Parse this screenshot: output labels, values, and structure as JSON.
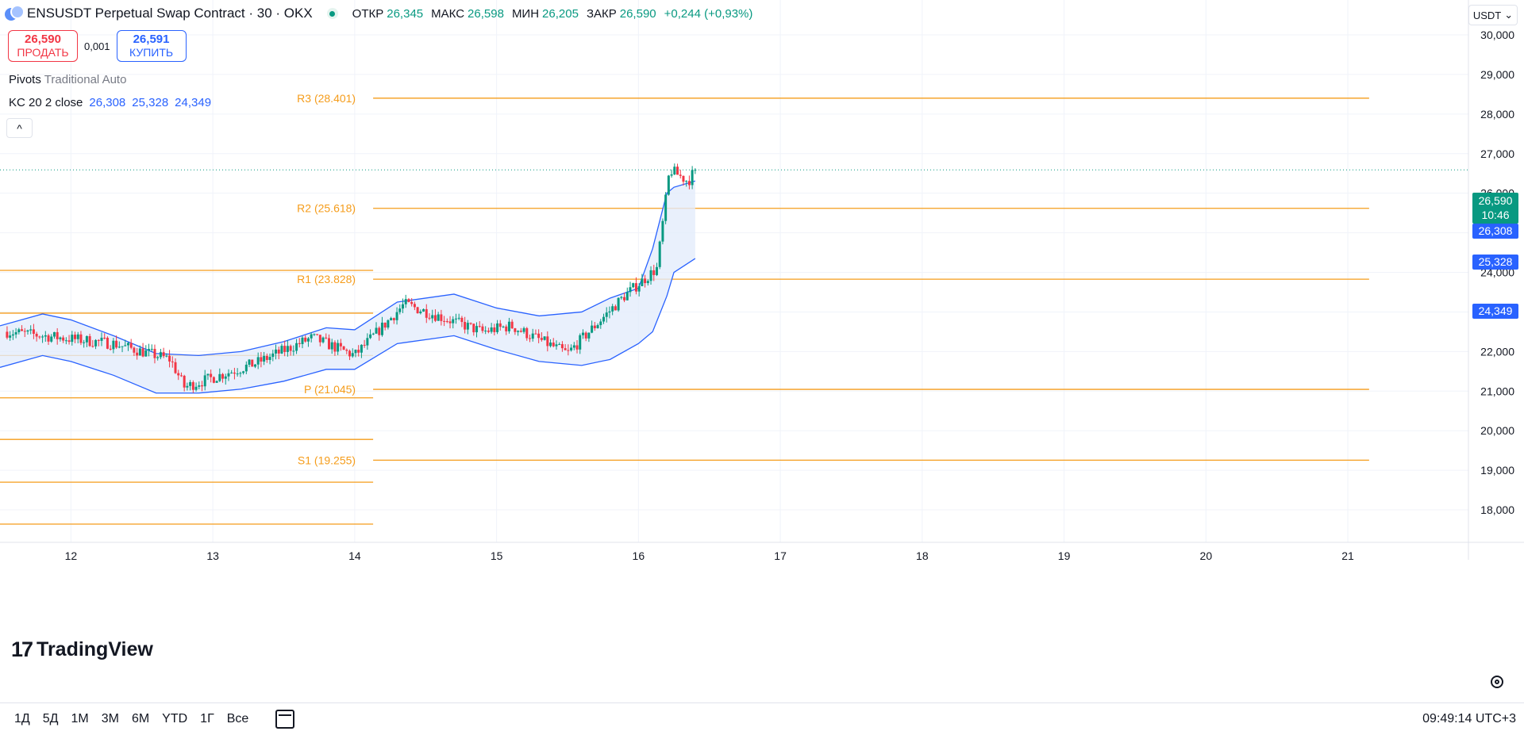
{
  "header": {
    "title": "ENSUSDT Perpetual Swap Contract · 30 · OKX",
    "ohlc": [
      {
        "k": "ОТКР",
        "v": "26,345"
      },
      {
        "k": "МАКС",
        "v": "26,598"
      },
      {
        "k": "МИН",
        "v": "26,205"
      },
      {
        "k": "ЗАКР",
        "v": "26,590"
      }
    ],
    "change": "+0,244 (+0,93%)"
  },
  "trade": {
    "sell_price": "26,590",
    "sell_label": "ПРОДАТЬ",
    "spread": "0,001",
    "buy_price": "26,591",
    "buy_label": "КУПИТЬ"
  },
  "indicators": {
    "pivots_name": "Pivots",
    "pivots_params": "Traditional Auto",
    "kc_name": "KC 20 2 close",
    "kc_values": [
      "26,308",
      "25,328",
      "24,349"
    ],
    "collapse_icon": "^"
  },
  "currency": {
    "label": "USDT",
    "icon": "chevron-down-icon"
  },
  "price_tags": {
    "last_price": "26,590",
    "countdown": "10:46",
    "kc_upper": "26,308",
    "kc_mid": "25,328",
    "kc_lower": "24,349"
  },
  "logo": {
    "mark": "17",
    "text": "TradingView"
  },
  "bottom_bar": {
    "ranges": [
      "1Д",
      "5Д",
      "1М",
      "3М",
      "6М",
      "YTD",
      "1Г",
      "Все"
    ],
    "clock": "09:49:14 UTC+3"
  },
  "colors": {
    "up": "#089981",
    "down": "#f23645",
    "pivot": "#f59c1a",
    "channel": "#2962ff",
    "channel_fill": "#e3ecfb",
    "grid": "#f0f3fa"
  },
  "chart_data": {
    "type": "candlestick",
    "ylim": [
      17300,
      30200
    ],
    "y_ticks": [
      18000,
      19000,
      20000,
      21000,
      22000,
      23000,
      24000,
      25000,
      26000,
      27000,
      28000,
      29000,
      30000
    ],
    "y_tick_labels": [
      "18,000",
      "19,000",
      "20,000",
      "21,000",
      "22,000",
      "23,000",
      "24,000",
      "25,000",
      "26,000",
      "27,000",
      "28,000",
      "29,000",
      "30,000"
    ],
    "x_ticks": [
      12,
      13,
      14,
      15,
      16,
      17,
      18,
      19,
      20,
      21
    ],
    "x_tick_labels": [
      "12",
      "13",
      "14",
      "15",
      "16",
      "17",
      "18",
      "19",
      "20",
      "21"
    ],
    "x_range": [
      11.5,
      21.85
    ],
    "last_price": 26590,
    "pivots": [
      {
        "label": "R3 (28.401)",
        "value": 28401
      },
      {
        "label": "R2 (25.618)",
        "value": 25618
      },
      {
        "label": "R1 (23.828)",
        "value": 23828
      },
      {
        "label": "P (21.045)",
        "value": 21045
      },
      {
        "label": "S1 (19.255)",
        "value": 19255
      }
    ],
    "pivot_period_split": 14.13,
    "prev_pivots": [
      24050,
      22970,
      21900,
      20830,
      19780,
      18700,
      17640
    ],
    "keltner": {
      "x": [
        11.5,
        11.8,
        12.0,
        12.3,
        12.6,
        12.9,
        13.2,
        13.5,
        13.8,
        14.0,
        14.3,
        14.7,
        15.0,
        15.3,
        15.6,
        15.8,
        16.0,
        16.1,
        16.2,
        16.25,
        16.4
      ],
      "upper": [
        22650,
        22950,
        22800,
        22400,
        21950,
        21900,
        22000,
        22250,
        22600,
        22550,
        23250,
        23450,
        23100,
        22900,
        23000,
        23350,
        23600,
        24600,
        26000,
        26150,
        26310
      ],
      "lower": [
        21600,
        21900,
        21750,
        21400,
        20950,
        20950,
        21050,
        21250,
        21550,
        21550,
        22200,
        22400,
        22050,
        21750,
        21650,
        21800,
        22200,
        22500,
        23400,
        24000,
        24350
      ]
    },
    "candle_dates": [
      11.55,
      12.3,
      12.7,
      12.8,
      13.3,
      13.7,
      14.0,
      14.35,
      14.9,
      15.1,
      15.5,
      15.9,
      16.13,
      16.22,
      16.35,
      16.4
    ],
    "candle_prices": [
      22500,
      22200,
      21800,
      21100,
      21700,
      22350,
      21900,
      23200,
      22500,
      22650,
      21950,
      23400,
      24100,
      26600,
      26300,
      26590
    ],
    "candle_count": 234,
    "candle_volatility": 150
  }
}
